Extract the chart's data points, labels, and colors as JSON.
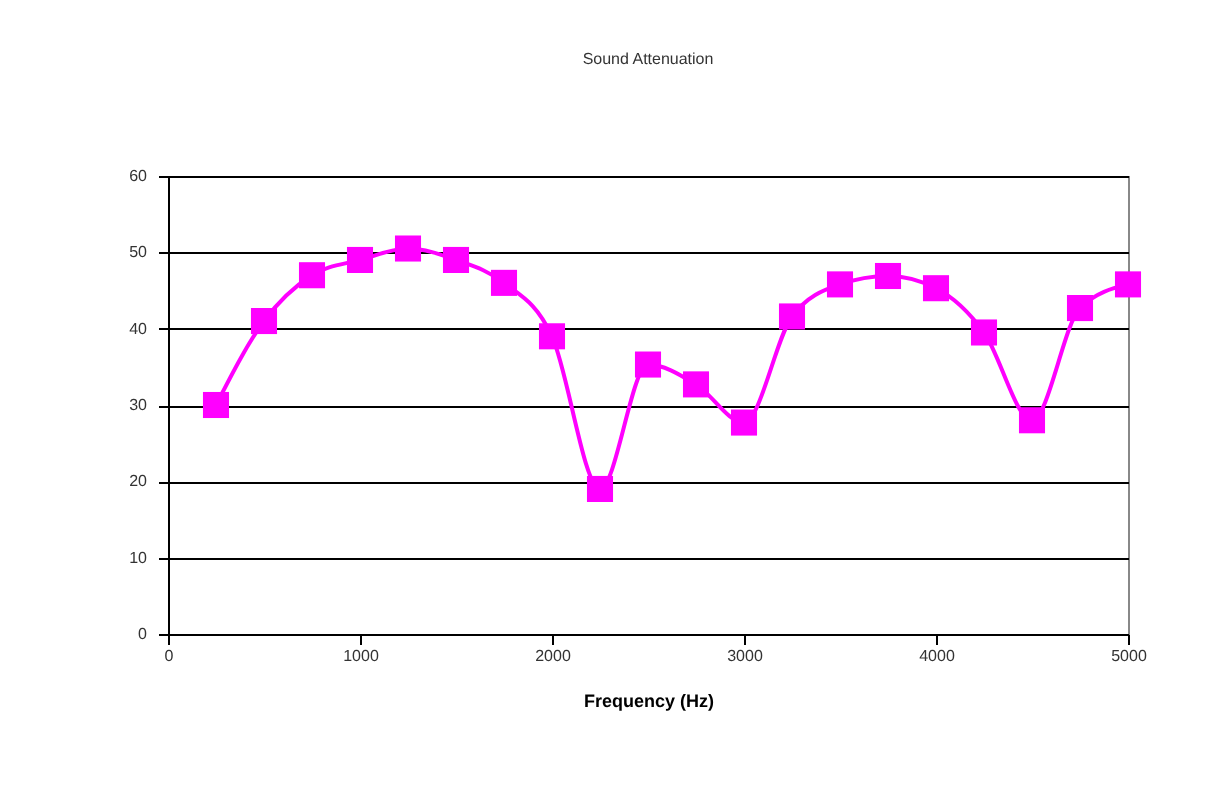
{
  "chart_data": {
    "type": "line",
    "title": "Sound Attenuation",
    "xlabel": "Frequency (Hz)",
    "x": [
      250,
      500,
      750,
      1000,
      1250,
      1500,
      1750,
      2000,
      2250,
      2500,
      2750,
      3000,
      3250,
      3500,
      3750,
      4000,
      4250,
      4500,
      4750,
      5000
    ],
    "series": [
      {
        "color": "#ff00ff",
        "values": [
          30,
          41,
          47,
          49,
          50.5,
          49,
          46,
          39,
          19,
          35.3,
          32.7,
          27.7,
          41.6,
          45.8,
          46.9,
          45.3,
          39.5,
          28,
          42.7,
          45.8
        ]
      }
    ],
    "xlim": [
      0,
      5000
    ],
    "xticks": [
      0,
      1000,
      2000,
      3000,
      4000,
      5000
    ],
    "ylim": [
      0,
      60
    ],
    "yticks": [
      0,
      10,
      20,
      30,
      40,
      50,
      60
    ],
    "grid": "y",
    "marker": "square",
    "line_style": "solid"
  }
}
